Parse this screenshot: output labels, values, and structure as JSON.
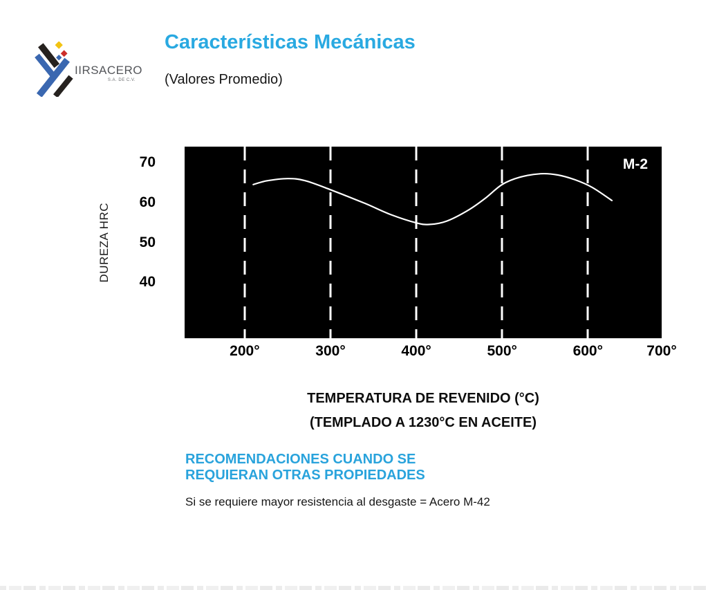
{
  "logo": {
    "company": "IIRSACERO",
    "suffix": "S.A. DE C.V.",
    "colors": {
      "blue": "#3a67b0",
      "dark": "#26221f",
      "yellow": "#f2c313",
      "red": "#cc2e2a"
    }
  },
  "header": {
    "title": "Características Mecánicas",
    "subtitle": "(Valores Promedio)",
    "title_color": "#29a9e1"
  },
  "chart_data": {
    "type": "line",
    "series_label": "M-2",
    "xlabel": "TEMPERATURA DE REVENIDO (°C)",
    "xlabel2": "(TEMPLADO A 1230°C EN ACEITE)",
    "ylabel": "DUREZA HRC",
    "xlim": [
      130,
      686
    ],
    "ylim": [
      26,
      74
    ],
    "plot_background": "#000000",
    "line_color": "#ffffff",
    "grid": "vertical-dashed-white",
    "gridlines_x": [
      200,
      300,
      400,
      500,
      600
    ],
    "xticks": [
      {
        "value": 200,
        "label": "200°"
      },
      {
        "value": 300,
        "label": "300°"
      },
      {
        "value": 400,
        "label": "400°"
      },
      {
        "value": 500,
        "label": "500°"
      },
      {
        "value": 600,
        "label": "600°"
      },
      {
        "value": 700,
        "label": "700°"
      }
    ],
    "yticks": [
      {
        "value": 70,
        "label": "70"
      },
      {
        "value": 60,
        "label": "60"
      },
      {
        "value": 50,
        "label": "50"
      },
      {
        "value": 40,
        "label": "40"
      }
    ],
    "series": [
      {
        "name": "M-2",
        "points": [
          [
            210,
            64.5
          ],
          [
            225,
            65.4
          ],
          [
            250,
            66.0
          ],
          [
            270,
            65.5
          ],
          [
            300,
            63.2
          ],
          [
            340,
            59.8
          ],
          [
            370,
            57.0
          ],
          [
            400,
            54.9
          ],
          [
            415,
            54.5
          ],
          [
            435,
            55.3
          ],
          [
            460,
            58.0
          ],
          [
            480,
            61.0
          ],
          [
            500,
            64.5
          ],
          [
            520,
            66.3
          ],
          [
            545,
            67.2
          ],
          [
            565,
            66.9
          ],
          [
            585,
            65.7
          ],
          [
            605,
            63.8
          ],
          [
            628,
            60.5
          ]
        ]
      }
    ]
  },
  "recommendations": {
    "heading_lines": [
      "RECOMENDACIONES CUANDO SE",
      "REQUIERAN OTRAS PROPIEDADES"
    ],
    "heading_color": "#29a3dc",
    "note": "Si se requiere mayor resistencia al desgaste = Acero M-42"
  }
}
